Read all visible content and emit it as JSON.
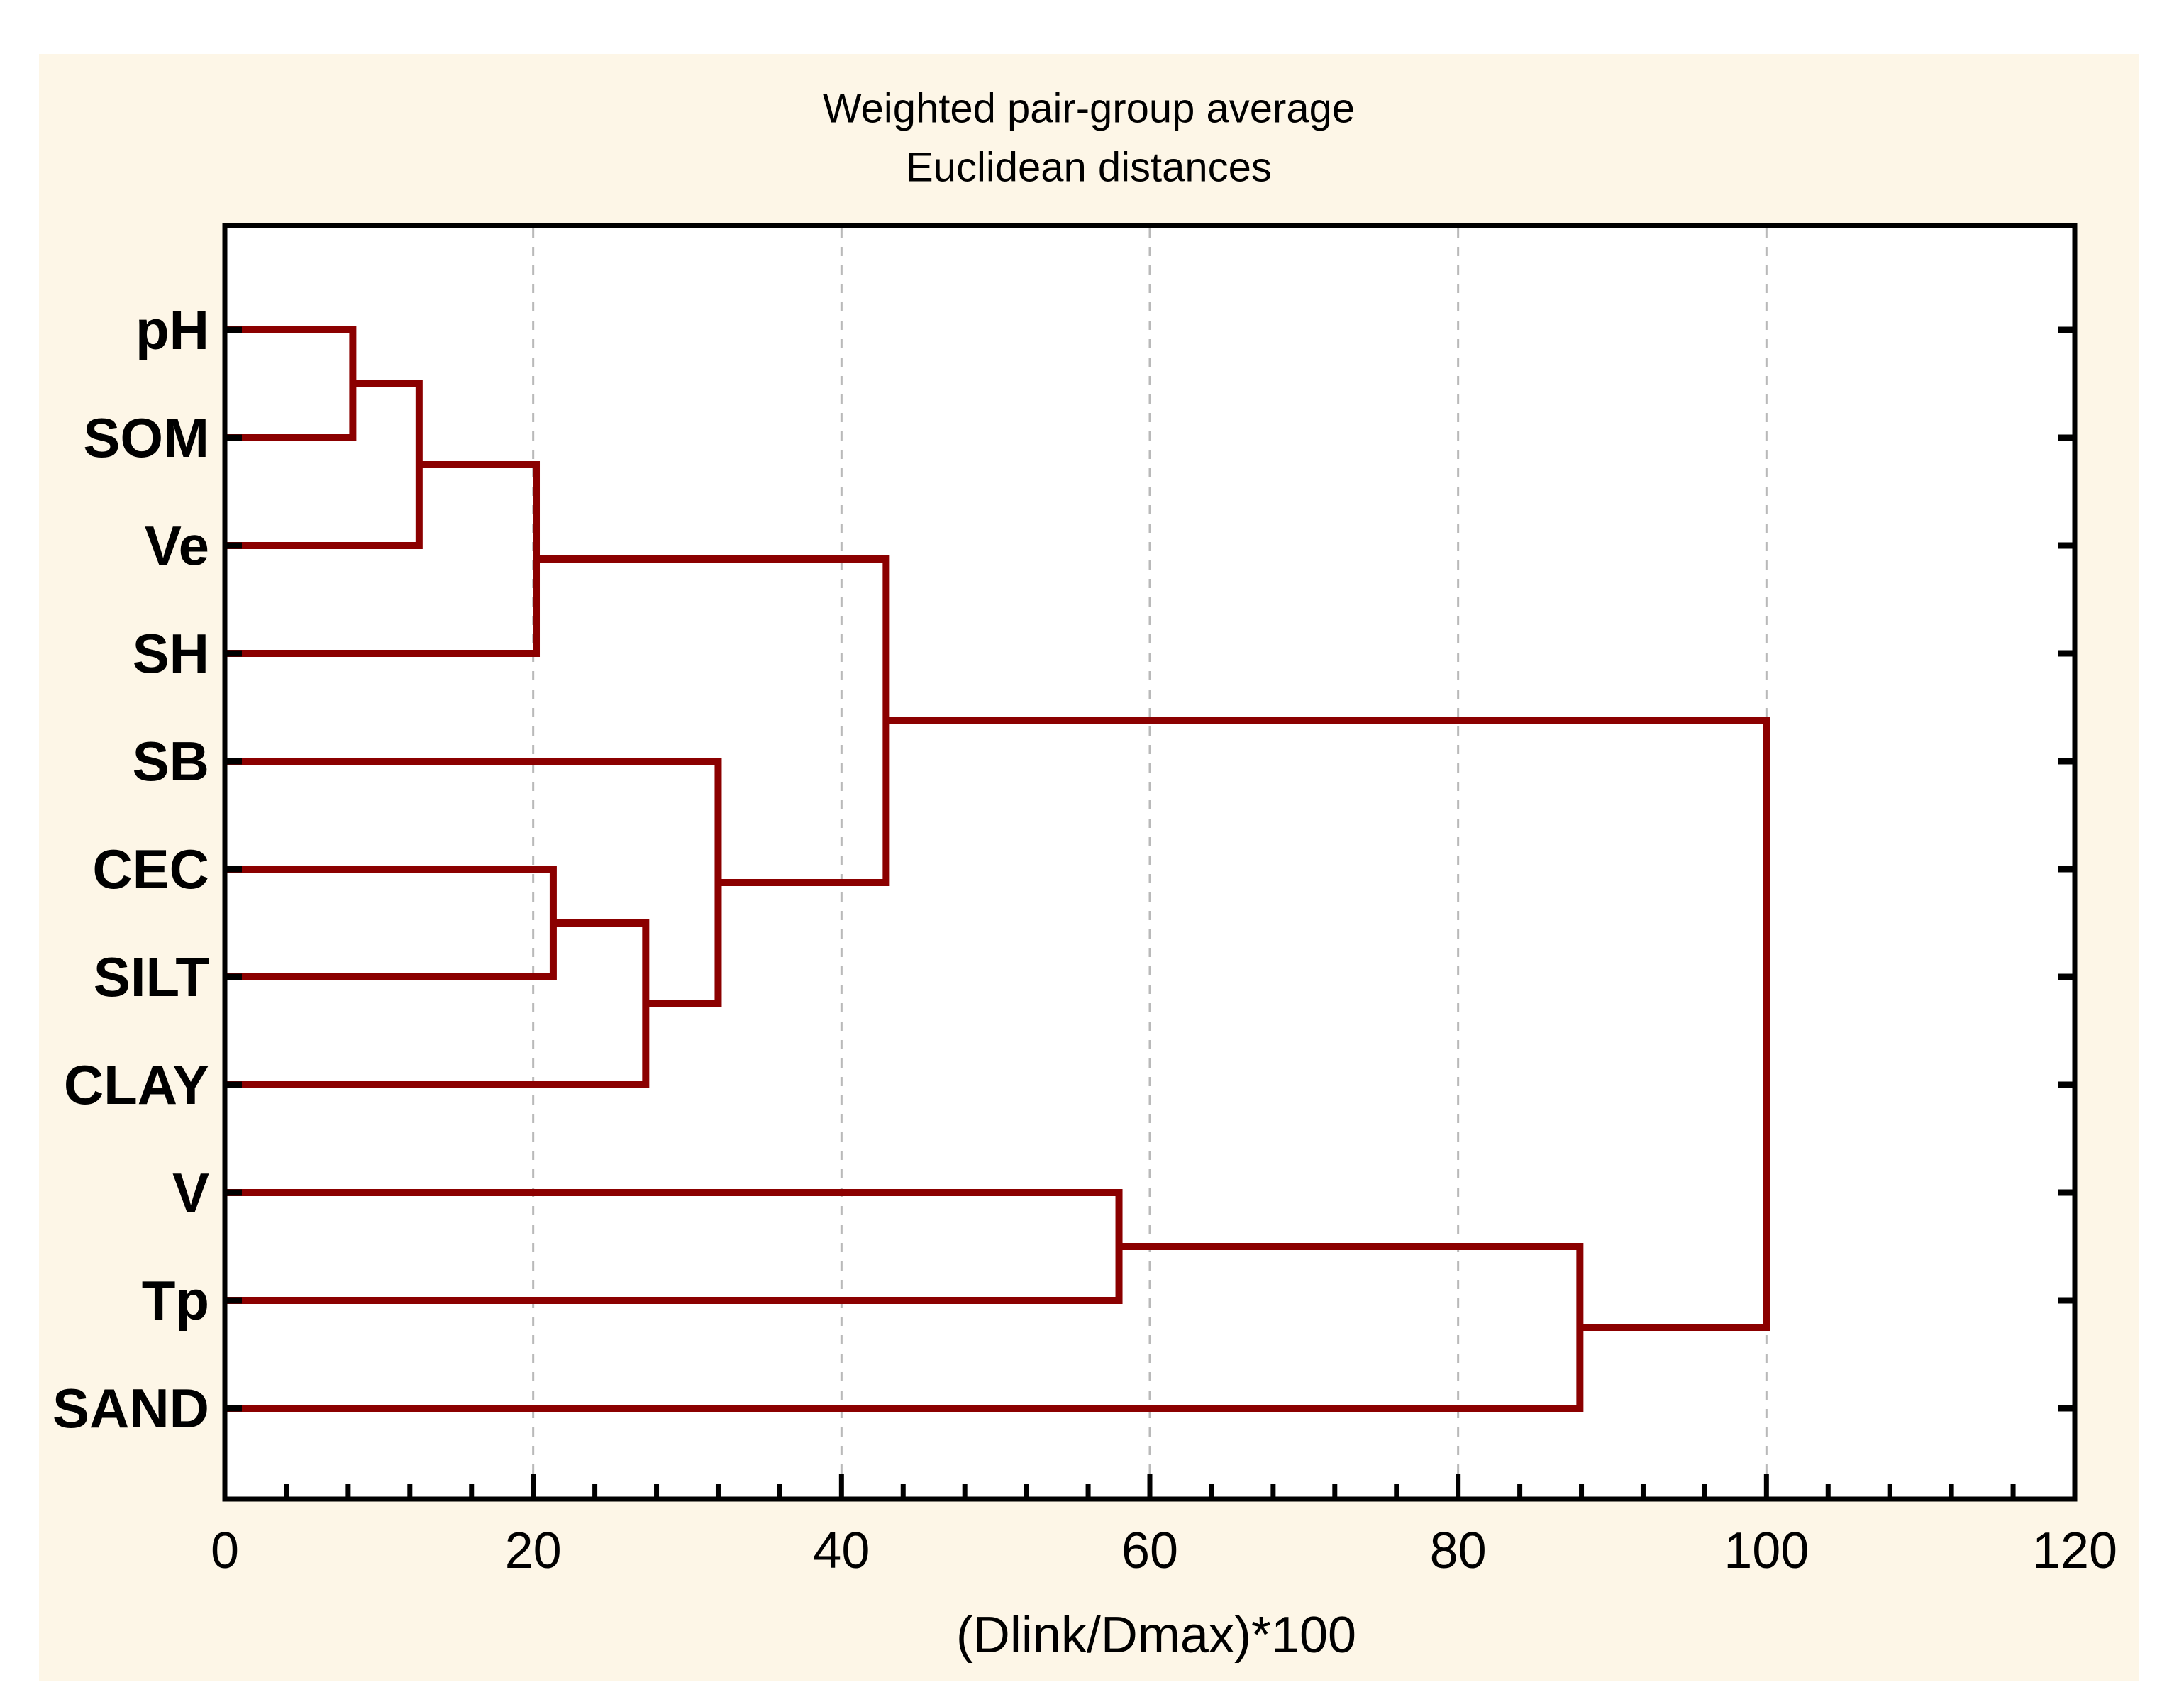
{
  "title": {
    "line1": "Weighted pair-group average",
    "line2": "Euclidean distances"
  },
  "x_axis": {
    "label": "(Dlink/Dmax)*100",
    "range": [
      0,
      120
    ],
    "major_ticks": [
      0,
      20,
      40,
      60,
      80,
      100,
      120
    ],
    "tick_labels": [
      "0",
      "20",
      "40",
      "60",
      "80",
      "100",
      "120"
    ],
    "minor_tick_step": 4,
    "gridlines_at": [
      20,
      40,
      60,
      80,
      100
    ]
  },
  "colors": {
    "page_background": "#FFFFFF",
    "canvas_background": "#FDF6E7",
    "plot_background": "#FFFFFF",
    "link_line": "#8B0000",
    "axis_line": "#000000",
    "gridline": "#B9B9B9",
    "text": "#000000"
  },
  "chart_data": {
    "type": "dendrogram",
    "orientation": "horizontal",
    "title": "Weighted pair-group average",
    "subtitle": "Euclidean distances",
    "xlabel": "(Dlink/Dmax)*100",
    "xlim": [
      0,
      120
    ],
    "grid": "vertical-dashed-at-major-ticks",
    "leaves": [
      "pH",
      "SOM",
      "Ve",
      "SH",
      "SB",
      "CEC",
      "SILT",
      "CLAY",
      "V",
      "Tp",
      "SAND"
    ],
    "merges": [
      {
        "id": "n1",
        "children": [
          "pH",
          "SOM"
        ],
        "height": 8.3
      },
      {
        "id": "n2",
        "children": [
          "n1",
          "Ve"
        ],
        "height": 12.6
      },
      {
        "id": "n3",
        "children": [
          "n2",
          "SH"
        ],
        "height": 20.2
      },
      {
        "id": "n4",
        "children": [
          "CEC",
          "SILT"
        ],
        "height": 21.3
      },
      {
        "id": "n5",
        "children": [
          "n4",
          "CLAY"
        ],
        "height": 27.3
      },
      {
        "id": "n6",
        "children": [
          "SB",
          "n5"
        ],
        "height": 32.0
      },
      {
        "id": "n7",
        "children": [
          "n3",
          "n6"
        ],
        "height": 42.9
      },
      {
        "id": "n8",
        "children": [
          "V",
          "Tp"
        ],
        "height": 58.0
      },
      {
        "id": "n9",
        "children": [
          "n8",
          "SAND"
        ],
        "height": 87.9
      },
      {
        "id": "n10",
        "children": [
          "n7",
          "n9"
        ],
        "height": 100.0
      }
    ]
  }
}
